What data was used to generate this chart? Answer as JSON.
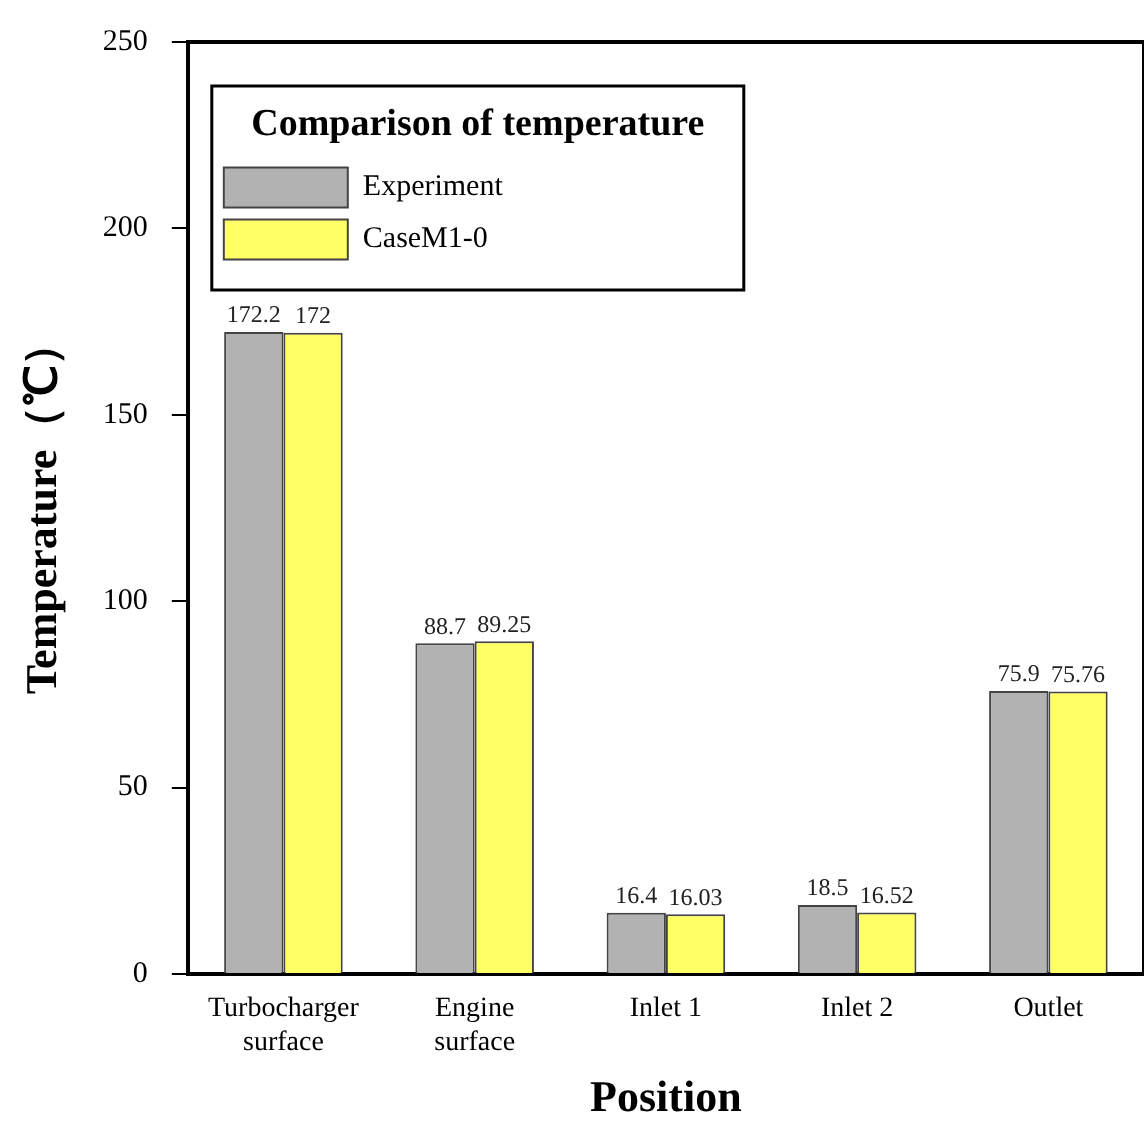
{
  "chart_data": {
    "type": "bar",
    "xlabel": "Position",
    "ylabel": "Temperature（℃）",
    "legend_title": "Comparison of temperature",
    "categories": [
      "Turbocharger surface",
      "Engine surface",
      "Inlet 1",
      "Inlet 2",
      "Outlet"
    ],
    "series": [
      {
        "name": "Experiment",
        "color": "#b2b2b2",
        "values": [
          172.2,
          88.7,
          16.4,
          18.5,
          75.9
        ]
      },
      {
        "name": "CaseM1-0",
        "color": "#ffff66",
        "values": [
          172,
          89.25,
          16.03,
          16.52,
          75.76
        ]
      }
    ],
    "ylim": [
      0,
      250
    ],
    "yticks": [
      0,
      50,
      100,
      150,
      200,
      250
    ],
    "grid": false,
    "legend": "top left",
    "data_labels": true
  }
}
